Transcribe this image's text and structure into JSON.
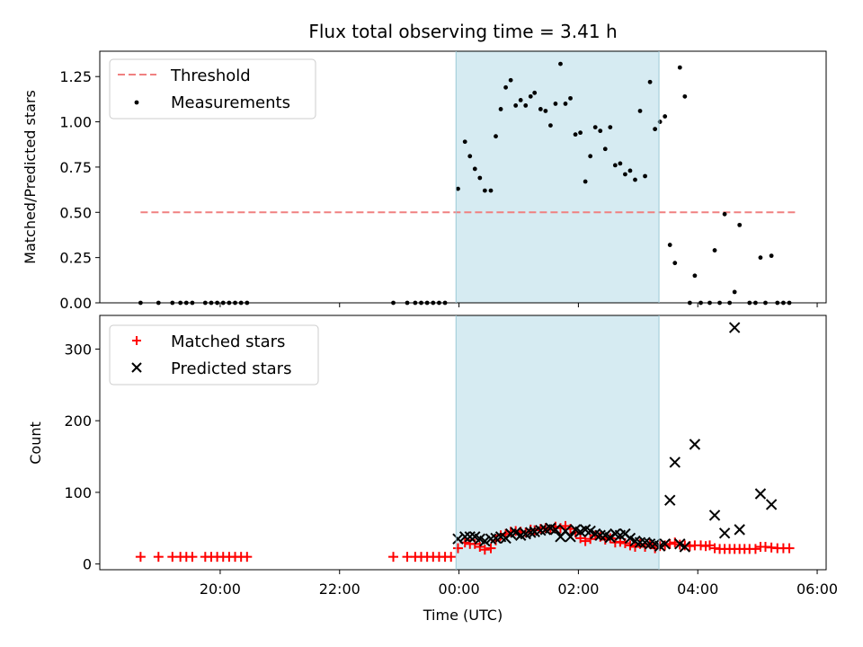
{
  "figure": {
    "title": "Flux total observing time = 3.41 h",
    "xlabel": "Time (UTC)",
    "xticks": [
      {
        "t": 20.0,
        "label": "20:00"
      },
      {
        "t": 22.0,
        "label": "22:00"
      },
      {
        "t": 24.0,
        "label": "00:00"
      },
      {
        "t": 26.0,
        "label": "02:00"
      },
      {
        "t": 28.0,
        "label": "04:00"
      },
      {
        "t": 30.0,
        "label": "06:00"
      }
    ],
    "xlim": [
      "17:59",
      "06:09"
    ],
    "shaded_span": {
      "start": "23:57",
      "end": "03:21",
      "color": "#add8e6"
    }
  },
  "chart_data": [
    {
      "type": "scatter",
      "ylabel": "Matched/Predicted stars",
      "ylim": [
        0,
        1.39
      ],
      "yticks": [
        {
          "v": 0.0,
          "label": "0.00"
        },
        {
          "v": 0.25,
          "label": "0.25"
        },
        {
          "v": 0.5,
          "label": "0.50"
        },
        {
          "v": 0.75,
          "label": "0.75"
        },
        {
          "v": 1.0,
          "label": "1.00"
        },
        {
          "v": 1.25,
          "label": "1.25"
        }
      ],
      "legend": {
        "position": "top-left",
        "entries": [
          {
            "name": "Threshold",
            "kind": "dashed-line",
            "color": "#f08080"
          },
          {
            "name": "Measurements",
            "kind": "dot",
            "color": "#000000"
          }
        ]
      },
      "threshold": {
        "value": 0.5,
        "from": "18:40",
        "to": "05:40",
        "color": "#f08080"
      },
      "points": [
        [
          "18:40",
          0
        ],
        [
          "18:58",
          0
        ],
        [
          "19:12",
          0
        ],
        [
          "19:20",
          0
        ],
        [
          "19:26",
          0
        ],
        [
          "19:32",
          0
        ],
        [
          "19:45",
          0
        ],
        [
          "19:51",
          0
        ],
        [
          "19:57",
          0
        ],
        [
          "20:03",
          0
        ],
        [
          "20:09",
          0
        ],
        [
          "20:15",
          0
        ],
        [
          "20:21",
          0
        ],
        [
          "20:27",
          0
        ],
        [
          "22:54",
          0
        ],
        [
          "23:08",
          0
        ],
        [
          "23:16",
          0
        ],
        [
          "23:22",
          0
        ],
        [
          "23:28",
          0
        ],
        [
          "23:34",
          0
        ],
        [
          "23:40",
          0
        ],
        [
          "23:46",
          0
        ],
        [
          "23:59",
          0.63
        ],
        [
          "00:06",
          0.89
        ],
        [
          "00:11",
          0.81
        ],
        [
          "00:16",
          0.74
        ],
        [
          "00:21",
          0.69
        ],
        [
          "00:26",
          0.62
        ],
        [
          "00:32",
          0.62
        ],
        [
          "00:37",
          0.92
        ],
        [
          "00:42",
          1.07
        ],
        [
          "00:47",
          1.19
        ],
        [
          "00:52",
          1.23
        ],
        [
          "00:57",
          1.09
        ],
        [
          "01:02",
          1.12
        ],
        [
          "01:07",
          1.09
        ],
        [
          "01:12",
          1.14
        ],
        [
          "01:16",
          1.16
        ],
        [
          "01:22",
          1.07
        ],
        [
          "01:27",
          1.06
        ],
        [
          "01:32",
          0.98
        ],
        [
          "01:37",
          1.1
        ],
        [
          "01:42",
          1.32
        ],
        [
          "01:47",
          1.1
        ],
        [
          "01:52",
          1.13
        ],
        [
          "01:57",
          0.93
        ],
        [
          "02:02",
          0.94
        ],
        [
          "02:07",
          0.67
        ],
        [
          "02:12",
          0.81
        ],
        [
          "02:17",
          0.97
        ],
        [
          "02:22",
          0.95
        ],
        [
          "02:27",
          0.85
        ],
        [
          "02:32",
          0.97
        ],
        [
          "02:37",
          0.76
        ],
        [
          "02:42",
          0.77
        ],
        [
          "02:47",
          0.71
        ],
        [
          "02:52",
          0.73
        ],
        [
          "02:57",
          0.68
        ],
        [
          "03:02",
          1.06
        ],
        [
          "03:07",
          0.7
        ],
        [
          "03:12",
          1.22
        ],
        [
          "03:17",
          0.96
        ],
        [
          "03:22",
          1.0
        ],
        [
          "03:27",
          1.03
        ],
        [
          "03:32",
          0.32
        ],
        [
          "03:37",
          0.22
        ],
        [
          "03:42",
          1.3
        ],
        [
          "03:47",
          1.14
        ],
        [
          "03:52",
          0
        ],
        [
          "03:57",
          0.15
        ],
        [
          "04:03",
          0
        ],
        [
          "04:12",
          0
        ],
        [
          "04:17",
          0.29
        ],
        [
          "04:22",
          0
        ],
        [
          "04:27",
          0.49
        ],
        [
          "04:32",
          0
        ],
        [
          "04:37",
          0.06
        ],
        [
          "04:42",
          0.43
        ],
        [
          "04:52",
          0
        ],
        [
          "04:58",
          0
        ],
        [
          "05:03",
          0.25
        ],
        [
          "05:08",
          0
        ],
        [
          "05:14",
          0.26
        ],
        [
          "05:20",
          0
        ],
        [
          "05:26",
          0
        ],
        [
          "05:32",
          0
        ]
      ]
    },
    {
      "type": "scatter",
      "ylabel": "Count",
      "ylim": [
        -8,
        347
      ],
      "yticks": [
        {
          "v": 0,
          "label": "0"
        },
        {
          "v": 100,
          "label": "100"
        },
        {
          "v": 200,
          "label": "200"
        },
        {
          "v": 300,
          "label": "300"
        }
      ],
      "legend": {
        "position": "top-left",
        "entries": [
          {
            "name": "Matched stars",
            "kind": "plus",
            "color": "#ff0000"
          },
          {
            "name": "Predicted stars",
            "kind": "x",
            "color": "#000000"
          }
        ]
      },
      "series": [
        {
          "name": "Matched stars",
          "marker": "plus",
          "color": "#ff0000",
          "points": [
            [
              "18:40",
              10
            ],
            [
              "18:58",
              10
            ],
            [
              "19:12",
              10
            ],
            [
              "19:20",
              10
            ],
            [
              "19:26",
              10
            ],
            [
              "19:32",
              10
            ],
            [
              "19:45",
              10
            ],
            [
              "19:51",
              10
            ],
            [
              "19:57",
              10
            ],
            [
              "20:03",
              10
            ],
            [
              "20:09",
              10
            ],
            [
              "20:15",
              10
            ],
            [
              "20:21",
              10
            ],
            [
              "20:27",
              10
            ],
            [
              "22:54",
              10
            ],
            [
              "23:08",
              10
            ],
            [
              "23:16",
              10
            ],
            [
              "23:22",
              10
            ],
            [
              "23:28",
              10
            ],
            [
              "23:34",
              10
            ],
            [
              "23:40",
              10
            ],
            [
              "23:46",
              10
            ],
            [
              "23:52",
              10
            ],
            [
              "23:59",
              22
            ],
            [
              "00:06",
              30
            ],
            [
              "00:11",
              28
            ],
            [
              "00:16",
              28
            ],
            [
              "00:21",
              24
            ],
            [
              "00:26",
              20
            ],
            [
              "00:32",
              22
            ],
            [
              "00:37",
              33
            ],
            [
              "00:42",
              40
            ],
            [
              "00:47",
              42
            ],
            [
              "00:52",
              45
            ],
            [
              "00:57",
              46
            ],
            [
              "01:02",
              45
            ],
            [
              "01:07",
              44
            ],
            [
              "01:12",
              48
            ],
            [
              "01:16",
              47
            ],
            [
              "01:22",
              49
            ],
            [
              "01:27",
              50
            ],
            [
              "01:32",
              48
            ],
            [
              "01:37",
              52
            ],
            [
              "01:42",
              50
            ],
            [
              "01:47",
              53
            ],
            [
              "01:52",
              49
            ],
            [
              "01:57",
              44
            ],
            [
              "02:02",
              36
            ],
            [
              "02:07",
              32
            ],
            [
              "02:12",
              35
            ],
            [
              "02:17",
              40
            ],
            [
              "02:22",
              38
            ],
            [
              "02:27",
              34
            ],
            [
              "02:32",
              36
            ],
            [
              "02:37",
              30
            ],
            [
              "02:42",
              31
            ],
            [
              "02:47",
              29
            ],
            [
              "02:52",
              26
            ],
            [
              "02:57",
              24
            ],
            [
              "03:02",
              28
            ],
            [
              "03:07",
              24
            ],
            [
              "03:12",
              28
            ],
            [
              "03:17",
              22
            ],
            [
              "03:22",
              25
            ],
            [
              "03:27",
              26
            ],
            [
              "03:32",
              28
            ],
            [
              "03:37",
              30
            ],
            [
              "03:42",
              27
            ],
            [
              "03:47",
              26
            ],
            [
              "03:52",
              25
            ],
            [
              "03:57",
              26
            ],
            [
              "04:03",
              26
            ],
            [
              "04:08",
              25
            ],
            [
              "04:12",
              26
            ],
            [
              "04:17",
              22
            ],
            [
              "04:22",
              21
            ],
            [
              "04:27",
              21
            ],
            [
              "04:32",
              21
            ],
            [
              "04:37",
              21
            ],
            [
              "04:42",
              21
            ],
            [
              "04:47",
              21
            ],
            [
              "04:52",
              21
            ],
            [
              "04:58",
              21
            ],
            [
              "05:03",
              24
            ],
            [
              "05:08",
              24
            ],
            [
              "05:14",
              23
            ],
            [
              "05:20",
              22
            ],
            [
              "05:26",
              22
            ],
            [
              "05:32",
              22
            ]
          ]
        },
        {
          "name": "Predicted stars",
          "marker": "x",
          "color": "#000000",
          "points": [
            [
              "23:59",
              35
            ],
            [
              "00:06",
              38
            ],
            [
              "00:11",
              38
            ],
            [
              "00:16",
              38
            ],
            [
              "00:21",
              35
            ],
            [
              "00:26",
              32
            ],
            [
              "00:32",
              35
            ],
            [
              "00:37",
              36
            ],
            [
              "00:42",
              38
            ],
            [
              "00:47",
              36
            ],
            [
              "00:52",
              42
            ],
            [
              "00:57",
              44
            ],
            [
              "01:02",
              40
            ],
            [
              "01:07",
              42
            ],
            [
              "01:12",
              44
            ],
            [
              "01:16",
              45
            ],
            [
              "01:22",
              47
            ],
            [
              "01:27",
              48
            ],
            [
              "01:32",
              50
            ],
            [
              "01:37",
              48
            ],
            [
              "01:42",
              38
            ],
            [
              "01:47",
              46
            ],
            [
              "01:52",
              38
            ],
            [
              "01:57",
              48
            ],
            [
              "02:02",
              45
            ],
            [
              "02:07",
              48
            ],
            [
              "02:12",
              46
            ],
            [
              "02:17",
              42
            ],
            [
              "02:22",
              40
            ],
            [
              "02:27",
              40
            ],
            [
              "02:32",
              37
            ],
            [
              "02:37",
              42
            ],
            [
              "02:42",
              40
            ],
            [
              "02:47",
              42
            ],
            [
              "02:52",
              36
            ],
            [
              "02:57",
              32
            ],
            [
              "03:02",
              30
            ],
            [
              "03:07",
              30
            ],
            [
              "03:12",
              28
            ],
            [
              "03:17",
              28
            ],
            [
              "03:22",
              25
            ],
            [
              "03:27",
              28
            ],
            [
              "03:32",
              89
            ],
            [
              "03:37",
              142
            ],
            [
              "03:42",
              28
            ],
            [
              "03:47",
              24
            ],
            [
              "03:57",
              167
            ],
            [
              "04:17",
              68
            ],
            [
              "04:27",
              43
            ],
            [
              "04:37",
              330
            ],
            [
              "04:42",
              48
            ],
            [
              "05:03",
              98
            ],
            [
              "05:14",
              83
            ]
          ]
        }
      ]
    }
  ]
}
